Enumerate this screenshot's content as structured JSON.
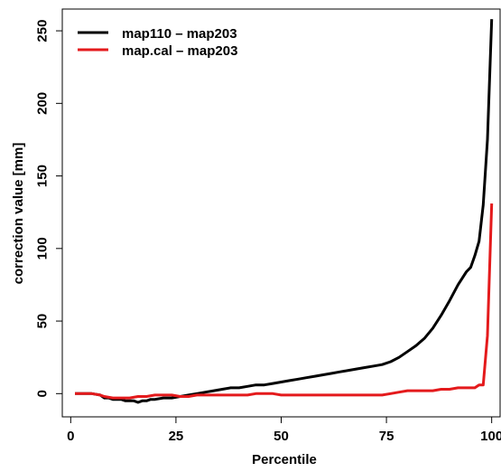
{
  "chart_data": {
    "type": "line",
    "xlabel": "Percentile",
    "ylabel": "correction value [mm]",
    "xlim": [
      -2,
      102
    ],
    "ylim": [
      -16,
      265
    ],
    "xticks": [
      0,
      25,
      50,
      75,
      100
    ],
    "yticks": [
      0,
      50,
      100,
      150,
      200,
      250
    ],
    "xtick_labels": [
      "0",
      "25",
      "50",
      "75",
      "100"
    ],
    "ytick_labels": [
      "0",
      "50",
      "100",
      "150",
      "200",
      "250"
    ],
    "legend_position": "top-left",
    "series": [
      {
        "name": "map110 – map203",
        "color": "#000000",
        "x": [
          1,
          3,
          5,
          7,
          8,
          9,
          10,
          11,
          12,
          13,
          14,
          15,
          16,
          17,
          18,
          19,
          20,
          22,
          24,
          26,
          28,
          30,
          32,
          34,
          36,
          38,
          40,
          42,
          44,
          46,
          48,
          50,
          52,
          54,
          56,
          58,
          60,
          62,
          64,
          66,
          68,
          70,
          72,
          74,
          76,
          78,
          80,
          82,
          84,
          86,
          88,
          90,
          92,
          94,
          95,
          96,
          97,
          98,
          99,
          100
        ],
        "y": [
          0,
          0,
          0,
          -1,
          -3,
          -3,
          -4,
          -4,
          -4,
          -5,
          -5,
          -5,
          -6,
          -5,
          -5,
          -4,
          -4,
          -3,
          -3,
          -2,
          -1,
          0,
          1,
          2,
          3,
          4,
          4,
          5,
          6,
          6,
          7,
          8,
          9,
          10,
          11,
          12,
          13,
          14,
          15,
          16,
          17,
          18,
          19,
          20,
          22,
          25,
          29,
          33,
          38,
          45,
          54,
          64,
          75,
          84,
          87,
          95,
          105,
          130,
          175,
          258
        ]
      },
      {
        "name": "map.cal – map203",
        "color": "#e41a1c",
        "x": [
          1,
          3,
          5,
          7,
          8,
          10,
          12,
          14,
          16,
          18,
          20,
          22,
          24,
          26,
          28,
          30,
          32,
          34,
          36,
          38,
          40,
          42,
          44,
          46,
          48,
          50,
          52,
          54,
          56,
          58,
          60,
          62,
          64,
          66,
          68,
          70,
          72,
          74,
          76,
          78,
          80,
          82,
          84,
          86,
          88,
          90,
          92,
          94,
          96,
          97,
          98,
          99,
          100
        ],
        "y": [
          0,
          0,
          0,
          -1,
          -2,
          -3,
          -3,
          -3,
          -2,
          -2,
          -1,
          -1,
          -1,
          -2,
          -2,
          -1,
          -1,
          -1,
          -1,
          -1,
          -1,
          -1,
          0,
          0,
          0,
          -1,
          -1,
          -1,
          -1,
          -1,
          -1,
          -1,
          -1,
          -1,
          -1,
          -1,
          -1,
          -1,
          0,
          1,
          2,
          2,
          2,
          2,
          3,
          3,
          4,
          4,
          4,
          6,
          6,
          40,
          131
        ]
      }
    ]
  }
}
